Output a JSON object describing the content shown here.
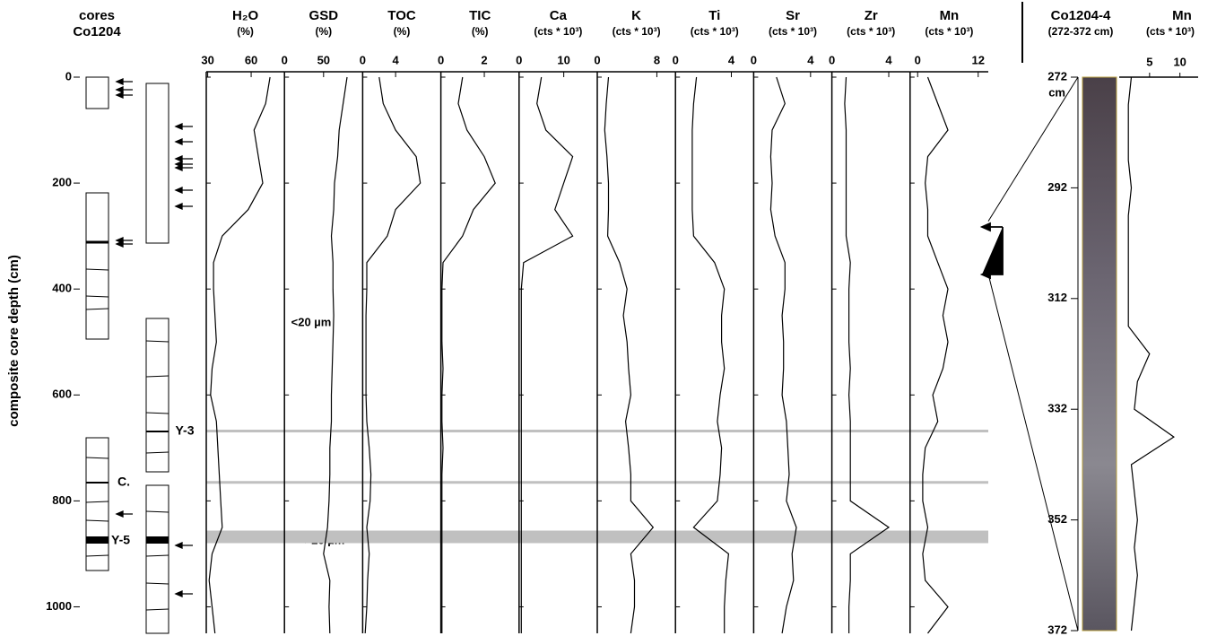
{
  "chart_data": [
    {
      "type": "cores",
      "title": "cores",
      "subtitle": "Co1204",
      "annotations": [
        "Y-3",
        "C.",
        "Y-5"
      ]
    },
    {
      "type": "depth-axis",
      "ylabel": "composite core depth (cm)",
      "ylim": [
        0,
        1050
      ],
      "yticks": [
        0,
        200,
        400,
        600,
        800,
        1000
      ],
      "depth": [
        0,
        50,
        100,
        150,
        200,
        250,
        300,
        350,
        400,
        450,
        500,
        550,
        600,
        650,
        700,
        750,
        800,
        850,
        900,
        950,
        1000,
        1050
      ],
      "bands": [
        668,
        765,
        868
      ],
      "notes": [
        "<20 µm",
        ">20 µm"
      ]
    },
    {
      "type": "line",
      "title": "H₂O",
      "unit": "(%)",
      "xlim": [
        29,
        83
      ],
      "xticks": [
        30,
        60
      ],
      "values": [
        73,
        70,
        62,
        65,
        68,
        58,
        40,
        34,
        34,
        35,
        36,
        33,
        32,
        36,
        37,
        38,
        39,
        40,
        33,
        31,
        33,
        35
      ]
    },
    {
      "type": "line",
      "title": "GSD",
      "unit": "(%)",
      "xlim": [
        0,
        100
      ],
      "xticks": [
        0,
        50
      ],
      "values": [
        80,
        75,
        70,
        68,
        64,
        63,
        60,
        62,
        62,
        63,
        62,
        61,
        60,
        60,
        58,
        58,
        57,
        55,
        50,
        58,
        57,
        58
      ]
    },
    {
      "type": "line",
      "title": "TOC",
      "unit": "(%)",
      "xlim": [
        0,
        9.5
      ],
      "xticks": [
        0,
        4
      ],
      "values": [
        2,
        2.5,
        4,
        6.5,
        7,
        4,
        3,
        0.5,
        0.5,
        0.4,
        0.4,
        0.4,
        0.4,
        0.5,
        0.8,
        1,
        0.9,
        0.5,
        0.8,
        0.6,
        0.5,
        0.3
      ]
    },
    {
      "type": "line",
      "title": "TIC",
      "unit": "(%)",
      "xlim": [
        0,
        3.6
      ],
      "xticks": [
        0,
        2
      ],
      "values": [
        1,
        0.8,
        1.2,
        2,
        2.5,
        1.5,
        1,
        0.1,
        0.05,
        0.05,
        0.05,
        0.1,
        0.05,
        0.05,
        0.1,
        0.05,
        0.05,
        0.05,
        0.05,
        0.05,
        0.05,
        0.05
      ]
    },
    {
      "type": "line",
      "title": "Ca",
      "unit": "(cts * 10³)",
      "xlim": [
        0,
        17.5
      ],
      "xticks": [
        0,
        10
      ],
      "values": [
        5,
        4,
        6,
        12,
        10,
        8,
        12,
        1,
        0.5,
        0.5,
        0.5,
        0.5,
        0.5,
        0.5,
        0.5,
        0.5,
        0.5,
        0.5,
        0.5,
        0.5,
        0.5,
        0.5
      ]
    },
    {
      "type": "line",
      "title": "K",
      "unit": "(cts * 10³)",
      "xlim": [
        0,
        10.5
      ],
      "xticks": [
        0,
        8
      ],
      "values": [
        1.5,
        1.2,
        1,
        1.3,
        1.5,
        1.5,
        1.4,
        3,
        4,
        3.5,
        4,
        4.2,
        4.5,
        3.8,
        4.2,
        4.5,
        4.5,
        7.5,
        4.5,
        5,
        5,
        4.5
      ]
    },
    {
      "type": "line",
      "title": "Ti",
      "unit": "(cts * 10³)",
      "xlim": [
        0,
        5.6
      ],
      "xticks": [
        0,
        4
      ],
      "values": [
        1.5,
        1.3,
        1.2,
        1.2,
        1.2,
        1.2,
        1.3,
        2.8,
        3.5,
        3.3,
        3.3,
        3.5,
        3.2,
        3,
        3.3,
        3.2,
        3,
        1.3,
        3.8,
        3.6,
        3.5,
        3.5
      ]
    },
    {
      "type": "line",
      "title": "Sr",
      "unit": "(cts * 10³)",
      "xlim": [
        0,
        5.5
      ],
      "xticks": [
        0,
        4
      ],
      "values": [
        1.6,
        2.2,
        1.3,
        1.2,
        1.3,
        1.2,
        1.5,
        2.2,
        2.2,
        2,
        2.1,
        2.1,
        2,
        2.3,
        2.4,
        2.5,
        2.3,
        3,
        2.7,
        2.8,
        2.3,
        2
      ]
    },
    {
      "type": "line",
      "title": "Zr",
      "unit": "(cts * 10³)",
      "xlim": [
        0,
        5.5
      ],
      "xticks": [
        0,
        4
      ],
      "values": [
        1,
        0.9,
        1,
        1,
        1,
        1,
        1,
        1.3,
        1.2,
        1.2,
        1.2,
        1.3,
        1.2,
        1.3,
        1.3,
        1.3,
        1.3,
        4,
        1.3,
        1.3,
        1.2,
        1.2
      ]
    },
    {
      "type": "line",
      "title": "Mn",
      "unit": "(cts * 10³)",
      "xlim": [
        -1.5,
        14
      ],
      "xticks": [
        0,
        12
      ],
      "values": [
        2,
        4,
        6,
        2,
        1.5,
        2,
        2,
        4,
        6,
        5,
        6,
        5,
        3,
        4,
        1.5,
        1,
        1,
        2,
        1,
        1.5,
        6,
        2
      ]
    },
    {
      "type": "photo-line",
      "title": "Co1204-4",
      "subtitle": "(272-372 cm)",
      "series_title": "Mn",
      "unit": "(cts * 10³)",
      "ylim": [
        272,
        372
      ],
      "yticks": [
        272,
        292,
        312,
        332,
        352,
        372
      ],
      "y_unit": "cm",
      "xlim": [
        0,
        13
      ],
      "xticks": [
        5,
        10
      ],
      "depth": [
        272,
        277,
        282,
        287,
        292,
        297,
        302,
        307,
        312,
        317,
        322,
        327,
        332,
        337,
        342,
        347,
        352,
        357,
        362,
        367,
        372
      ],
      "values": [
        2,
        1.5,
        1.5,
        1.5,
        2,
        1.5,
        1.5,
        1.5,
        1.5,
        1.5,
        5,
        3,
        2.5,
        9,
        2,
        2.5,
        3,
        2.5,
        3,
        2.5,
        2
      ]
    }
  ]
}
